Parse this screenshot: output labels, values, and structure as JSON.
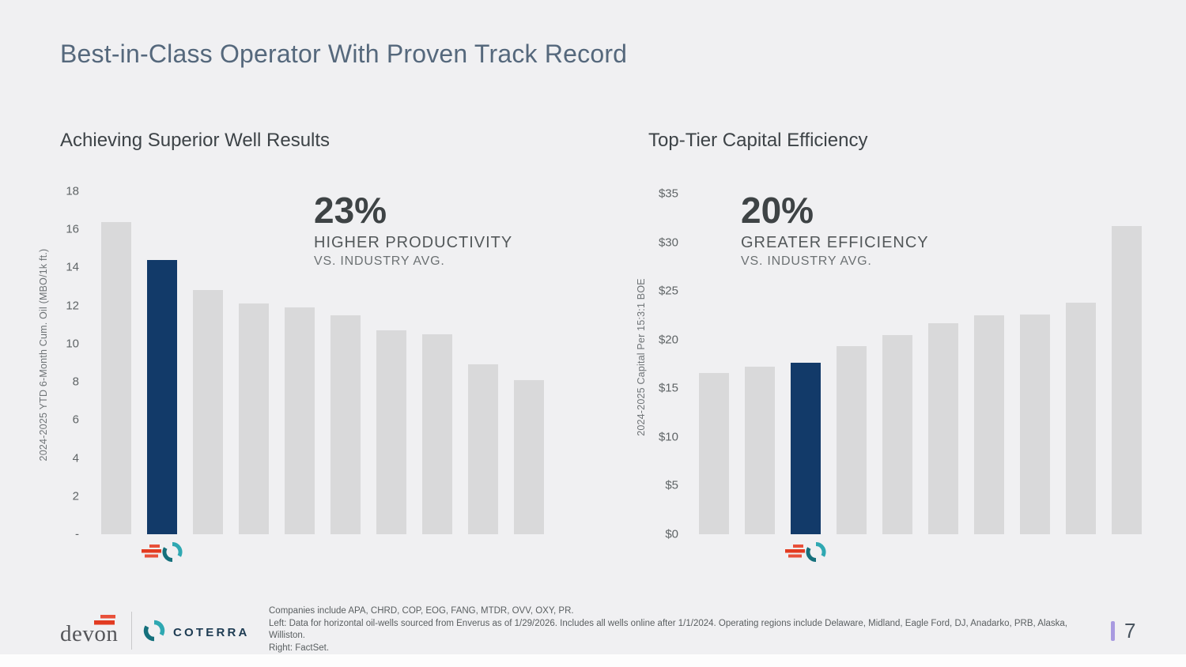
{
  "slide": {
    "title": "Best-in-Class Operator With Proven Track Record",
    "page_number": "7"
  },
  "colors": {
    "background": "#f0f0f2",
    "highlight_bar_navy": "#123a69",
    "default_bar_gray": "#d9d9da",
    "title_slate": "#55687c",
    "devon_red": "#e23b21",
    "devon_red_light": "#e8503a",
    "coterra_teal": "#2fa8b2",
    "coterra_teal_dark": "#15707c",
    "coterra_navy": "#1d3b52",
    "page_accent_purple": "#a89ae0"
  },
  "chart_data": [
    {
      "type": "bar",
      "title": "Achieving Superior Well Results",
      "ylabel": "2024-2025 YTD 6-Month Cum. Oil (MBO/1k ft.)",
      "ylim": [
        0,
        18
      ],
      "ytick_step": 2,
      "ytick_labels": [
        "18",
        "16",
        "14",
        "12",
        "10",
        "8",
        "6",
        "4",
        "2",
        "-"
      ],
      "categories": [
        "peer1",
        "devon-coterra",
        "peer2",
        "peer3",
        "peer4",
        "peer5",
        "peer6",
        "peer7",
        "peer8",
        "peer9"
      ],
      "values": [
        16.4,
        14.4,
        12.8,
        12.1,
        11.9,
        11.5,
        10.7,
        10.5,
        8.9,
        8.1
      ],
      "highlight_index": 1,
      "grid": false,
      "legend": "none",
      "callout": {
        "stat": "23%",
        "label": "HIGHER PRODUCTIVITY",
        "sublabel": "VS. INDUSTRY AVG."
      }
    },
    {
      "type": "bar",
      "title": "Top-Tier Capital Efficiency",
      "ylabel": "2024-2025 Capital Per 15:3:1 BOE",
      "ylim": [
        0,
        35
      ],
      "ytick_step": 5,
      "ytick_labels": [
        "$35",
        "$30",
        "$25",
        "$20",
        "$15",
        "$10",
        "$5",
        "$0"
      ],
      "categories": [
        "peer1",
        "peer2",
        "devon-coterra",
        "peer3",
        "peer4",
        "peer5",
        "peer6",
        "peer7",
        "peer8",
        "peer9"
      ],
      "values": [
        16.6,
        17.2,
        17.6,
        19.3,
        20.5,
        21.7,
        22.5,
        22.6,
        23.8,
        31.7
      ],
      "highlight_index": 2,
      "grid": false,
      "legend": "none",
      "callout": {
        "stat": "20%",
        "label": "GREATER EFFICIENCY",
        "sublabel": "VS. INDUSTRY AVG."
      }
    }
  ],
  "footer": {
    "devon_wordmark": "devon",
    "coterra_wordmark": "COTERRA",
    "footnote_lines": [
      "Companies include APA, CHRD, COP, EOG, FANG, MTDR, OVV, OXY, PR.",
      "Left: Data for horizontal oil-wells sourced from Enverus as of 1/29/2026. Includes all wells online after 1/1/2024. Operating regions include Delaware, Midland, Eagle Ford, DJ, Anadarko, PRB, Alaska, Williston.",
      "Right: FactSet."
    ]
  }
}
